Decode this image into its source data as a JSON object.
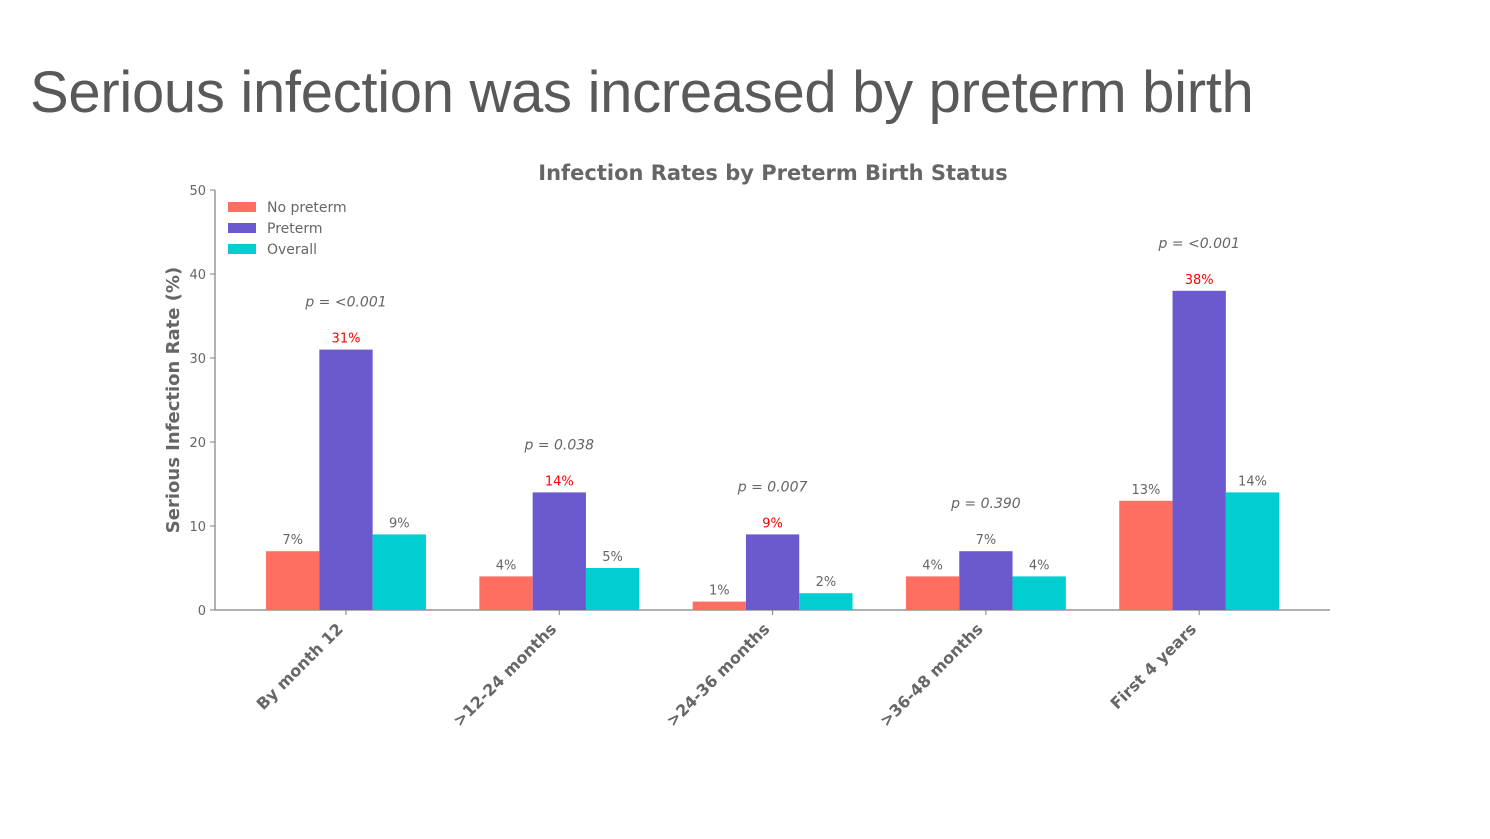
{
  "slide": {
    "title": "Serious infection was increased by preterm birth"
  },
  "colors": {
    "no_preterm": "#ff6f61",
    "preterm": "#6a5acd",
    "overall": "#00ced1",
    "text": "#666666",
    "highlight_label": "#ff0000",
    "axis": "#808080"
  },
  "chart_data": {
    "type": "bar",
    "title": "Infection Rates by Preterm Birth Status",
    "xlabel": "",
    "ylabel": "Serious Infection Rate (%)",
    "ylim": [
      0,
      50
    ],
    "yticks": [
      0,
      10,
      20,
      30,
      40,
      50
    ],
    "grid": false,
    "legend_position": "top-left",
    "categories": [
      "By month 12",
      ">12-24 months",
      ">24-36 months",
      ">36-48 months",
      "First 4 years"
    ],
    "series": [
      {
        "name": "No preterm",
        "values": [
          7,
          4,
          1,
          4,
          13
        ],
        "labels": [
          "7%",
          "4%",
          "1%",
          "4%",
          "13%"
        ]
      },
      {
        "name": "Preterm",
        "values": [
          31,
          14,
          9,
          7,
          38
        ],
        "labels": [
          "31%",
          "14%",
          "9%",
          "7%",
          "38%"
        ],
        "highlighted": [
          true,
          true,
          true,
          false,
          true
        ]
      },
      {
        "name": "Overall",
        "values": [
          9,
          5,
          2,
          4,
          14
        ],
        "labels": [
          "9%",
          "5%",
          "2%",
          "4%",
          "14%"
        ]
      }
    ],
    "p_values": [
      "p = <0.001",
      "p = 0.038",
      "p = 0.007",
      "p = 0.390",
      "p = <0.001"
    ]
  }
}
